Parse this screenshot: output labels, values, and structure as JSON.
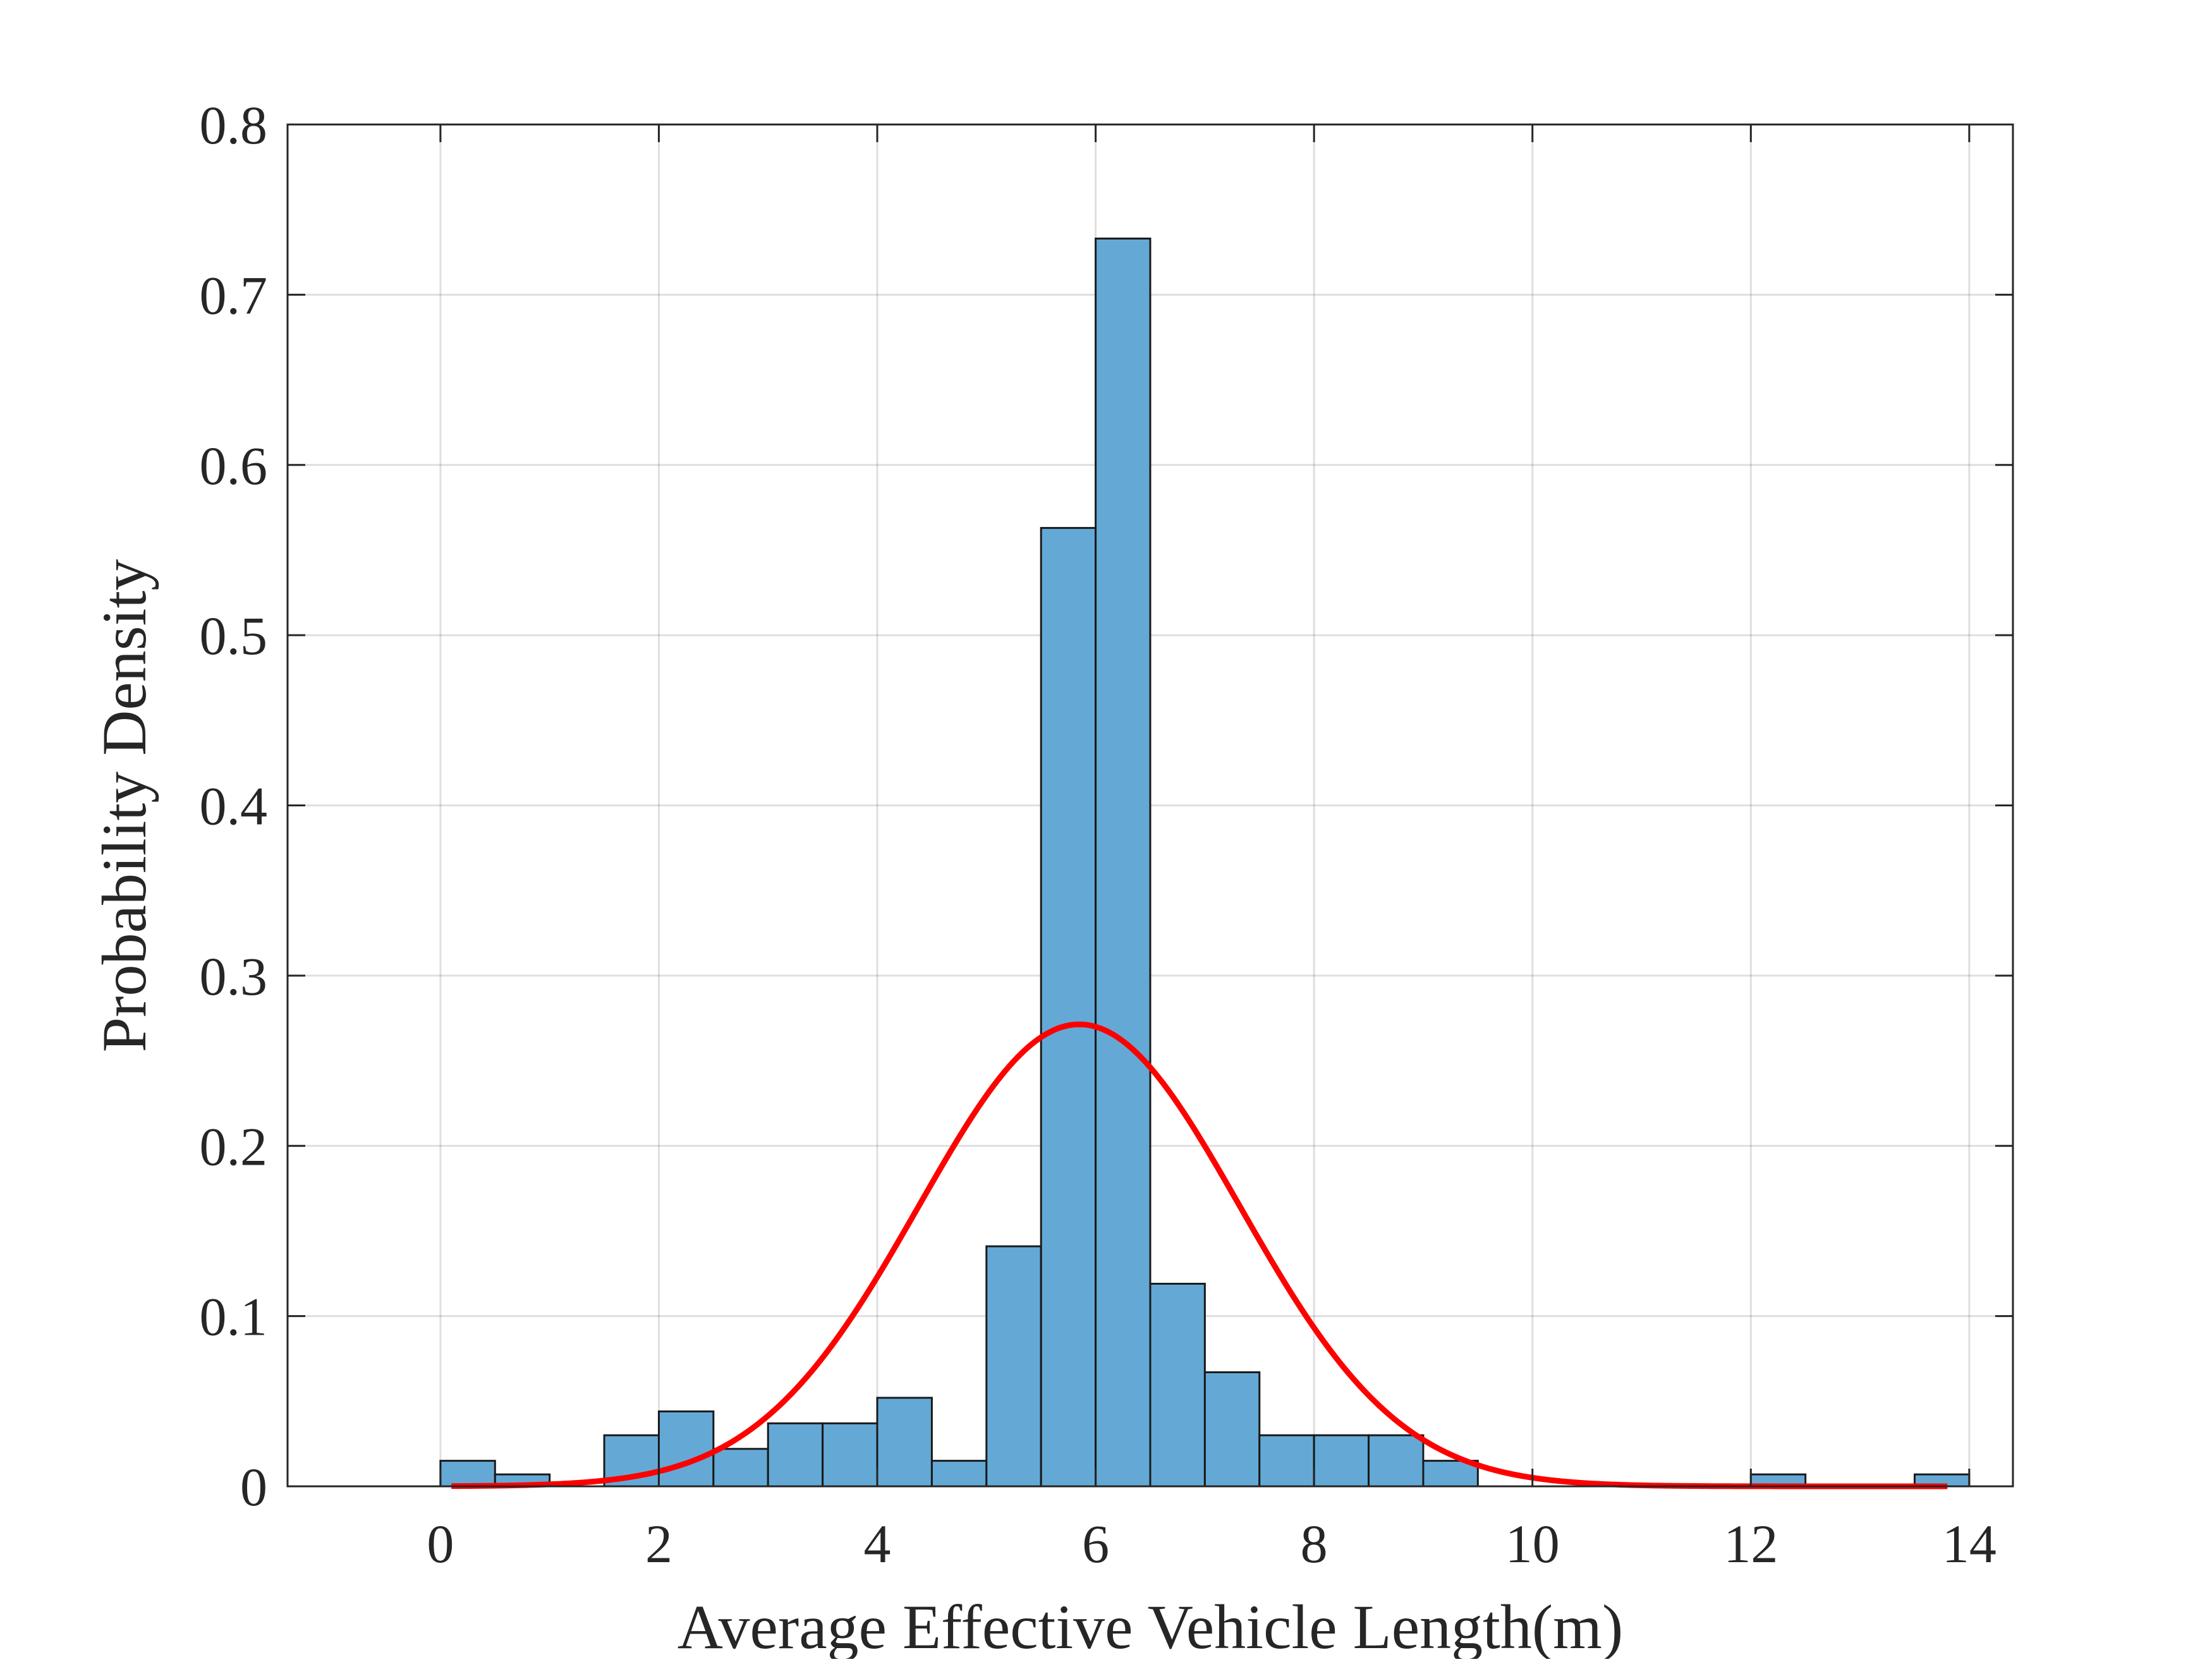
{
  "chart_data": {
    "type": "bar",
    "title": "",
    "xlabel": "Average Effective Vehicle Length(m)",
    "ylabel": "Probability Density",
    "xlim": [
      -1.4,
      14.4
    ],
    "ylim": [
      0,
      0.8
    ],
    "xticks": [
      0,
      2,
      4,
      6,
      8,
      10,
      12,
      14
    ],
    "yticks": [
      0,
      0.1,
      0.2,
      0.3,
      0.4,
      0.5,
      0.6,
      0.7,
      0.8
    ],
    "xtick_labels": [
      "0",
      "2",
      "4",
      "6",
      "8",
      "10",
      "12",
      "14"
    ],
    "ytick_labels": [
      "0",
      "0.1",
      "0.2",
      "0.3",
      "0.4",
      "0.5",
      "0.6",
      "0.7",
      "0.8"
    ],
    "grid": true,
    "bin_width": 0.5,
    "bins": [
      {
        "start": 0.0,
        "value": 0.015
      },
      {
        "start": 0.5,
        "value": 0.007
      },
      {
        "start": 1.0,
        "value": 0.0
      },
      {
        "start": 1.5,
        "value": 0.03
      },
      {
        "start": 2.0,
        "value": 0.044
      },
      {
        "start": 2.5,
        "value": 0.022
      },
      {
        "start": 3.0,
        "value": 0.037
      },
      {
        "start": 3.5,
        "value": 0.037
      },
      {
        "start": 4.0,
        "value": 0.052
      },
      {
        "start": 4.5,
        "value": 0.015
      },
      {
        "start": 5.0,
        "value": 0.141
      },
      {
        "start": 5.5,
        "value": 0.563
      },
      {
        "start": 6.0,
        "value": 0.733
      },
      {
        "start": 6.5,
        "value": 0.119
      },
      {
        "start": 7.0,
        "value": 0.067
      },
      {
        "start": 7.5,
        "value": 0.03
      },
      {
        "start": 8.0,
        "value": 0.03
      },
      {
        "start": 8.5,
        "value": 0.03
      },
      {
        "start": 9.0,
        "value": 0.015
      },
      {
        "start": 12.0,
        "value": 0.007
      },
      {
        "start": 13.5,
        "value": 0.007
      }
    ],
    "fit_curve": {
      "distribution": "normal",
      "mean": 5.85,
      "std": 1.47,
      "x_range": [
        0.1,
        13.8
      ],
      "color": "#ff0000"
    },
    "bar_color": "#64a9d6",
    "bar_edge_color": "#1a1a1a"
  }
}
